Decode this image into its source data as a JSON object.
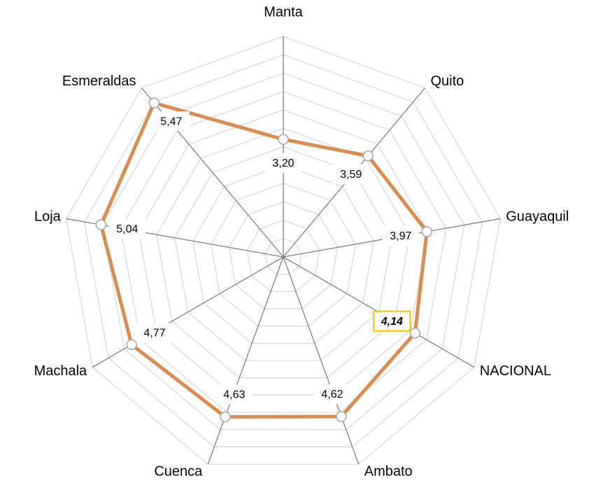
{
  "chart_data": {
    "type": "radar",
    "categories": [
      "Manta",
      "Quito",
      "Guayaquil",
      "NACIONAL",
      "Ambato",
      "Cuenca",
      "Machala",
      "Loja",
      "Esmeraldas"
    ],
    "values": [
      3.2,
      3.59,
      3.97,
      4.14,
      4.62,
      4.63,
      4.77,
      5.04,
      5.47
    ],
    "value_labels": [
      "3,20",
      "3,59",
      "3,97",
      "4,14",
      "4,62",
      "4,63",
      "4,77",
      "5,04",
      "5,47"
    ],
    "color": "#d98c4e",
    "rlim": [
      0,
      6
    ],
    "rticks": [
      0.5,
      1,
      1.5,
      2,
      2.5,
      3,
      3.5,
      4,
      4.5,
      5,
      5.5,
      6
    ],
    "highlight_index": 3,
    "highlight_color": "#f2c200"
  }
}
